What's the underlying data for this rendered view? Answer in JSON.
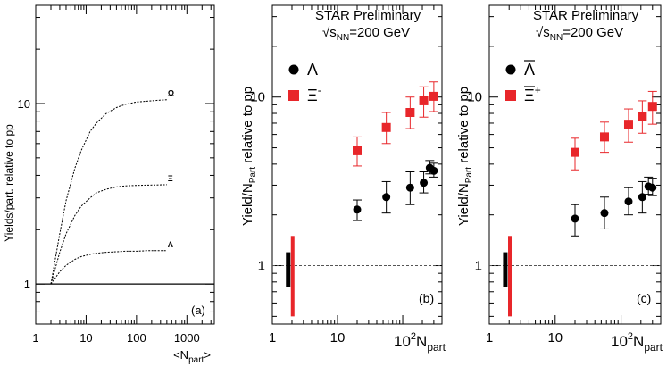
{
  "chart_data": [
    {
      "id": "a",
      "type": "line",
      "panel_label": "(a)",
      "ylabel": "Yields/part. relative to pp",
      "xlabel_main": "<N",
      "xlabel_sub": "part",
      "xlabel_end": ">",
      "xscale": "log",
      "yscale": "log",
      "xlim": [
        1,
        3500
      ],
      "ylim": [
        0.6,
        35
      ],
      "xticks": [
        1,
        10,
        100,
        1000
      ],
      "xtick_labels": [
        "1",
        "10",
        "100",
        "1000"
      ],
      "yticks": [
        1,
        10
      ],
      "ytick_labels": [
        "1",
        "10"
      ],
      "reference_line": 1,
      "series": [
        {
          "name": "Ω",
          "style": "dotted",
          "x": [
            2,
            3,
            4,
            6,
            8,
            12,
            16,
            25,
            40,
            60,
            100,
            160,
            250,
            400
          ],
          "y": [
            1.0,
            1.9,
            2.9,
            4.4,
            5.5,
            7.0,
            7.8,
            8.8,
            9.5,
            9.9,
            10.2,
            10.3,
            10.4,
            10.5
          ]
        },
        {
          "name": "Ξ",
          "style": "dotted",
          "x": [
            2,
            3,
            4,
            6,
            8,
            12,
            16,
            25,
            40,
            60,
            100,
            160,
            250,
            400
          ],
          "y": [
            1.0,
            1.5,
            1.9,
            2.4,
            2.7,
            3.0,
            3.2,
            3.35,
            3.45,
            3.5,
            3.52,
            3.53,
            3.54,
            3.55
          ]
        },
        {
          "name": "Λ",
          "style": "dotted",
          "x": [
            2,
            3,
            4,
            6,
            8,
            12,
            16,
            25,
            40,
            60,
            100,
            160,
            250,
            400
          ],
          "y": [
            1.0,
            1.17,
            1.27,
            1.37,
            1.42,
            1.46,
            1.48,
            1.5,
            1.51,
            1.52,
            1.52,
            1.53,
            1.53,
            1.53
          ]
        }
      ],
      "curve_labels": [
        "Ω",
        "Ξ",
        "Λ"
      ]
    },
    {
      "id": "b",
      "type": "scatter",
      "panel_label": "(b)",
      "title_line1": "STAR Preliminary",
      "title_line2_pre": "√s",
      "title_line2_sub": "NN",
      "title_line2_post": "=200 GeV",
      "ylabel_pre": "Yield/N",
      "ylabel_sub": "Part",
      "ylabel_post": " relative to pp",
      "xlabel_pre": "10",
      "xlabel_sup": "2",
      "xlabel_main": "N",
      "xlabel_sub": "part",
      "xscale": "log",
      "yscale": "log",
      "xlim": [
        1,
        400
      ],
      "ylim": [
        0.45,
        35
      ],
      "xticks": [
        1,
        10
      ],
      "xtick_labels": [
        "1",
        "10"
      ],
      "yticks": [
        1,
        10
      ],
      "ytick_labels": [
        "1",
        "10"
      ],
      "reference_line": 1,
      "series": [
        {
          "name": "Λ",
          "legend_label": "Λ",
          "legend_sup": "",
          "marker": "circle",
          "color": "#000000",
          "x": [
            20,
            56,
            130,
            210,
            260,
            300
          ],
          "y": [
            2.15,
            2.55,
            2.9,
            3.1,
            3.8,
            3.65
          ],
          "yerr_low": [
            0.3,
            0.5,
            0.6,
            0.4,
            0.3,
            0.3
          ],
          "yerr_high": [
            0.3,
            0.6,
            0.7,
            0.5,
            0.4,
            0.4
          ]
        },
        {
          "name": "Ξ⁻",
          "legend_label": "Ξ",
          "legend_sup": "-",
          "marker": "square",
          "color": "#e8262a",
          "x": [
            20,
            56,
            130,
            210,
            300
          ],
          "y": [
            4.8,
            6.6,
            8.1,
            9.5,
            10.1
          ],
          "yerr_low": [
            0.9,
            1.3,
            1.6,
            1.9,
            1.9
          ],
          "yerr_high": [
            1.0,
            1.5,
            1.9,
            2.0,
            2.2
          ]
        }
      ],
      "norm_bars": [
        {
          "x": 1.75,
          "ylow": 0.75,
          "yhigh": 1.2,
          "color": "#000000"
        },
        {
          "x": 2.05,
          "ylow": 0.5,
          "yhigh": 1.5,
          "color": "#e8262a"
        }
      ]
    },
    {
      "id": "c",
      "type": "scatter",
      "panel_label": "(c)",
      "title_line1": "STAR Preliminary",
      "title_line2_pre": "√s",
      "title_line2_sub": "NN",
      "title_line2_post": "=200 GeV",
      "ylabel_pre": "Yield/N",
      "ylabel_sub": "Part",
      "ylabel_post": " relative to pp",
      "xlabel_pre": "10",
      "xlabel_sup": "2",
      "xlabel_main": "N",
      "xlabel_sub": "part",
      "xscale": "log",
      "yscale": "log",
      "xlim": [
        1,
        400
      ],
      "ylim": [
        0.45,
        35
      ],
      "xticks": [
        1,
        10
      ],
      "xtick_labels": [
        "1",
        "10"
      ],
      "yticks": [
        1,
        10
      ],
      "ytick_labels": [
        "1",
        "10"
      ],
      "reference_line": 1,
      "series": [
        {
          "name": "Λ̄",
          "legend_label": "Λ",
          "legend_sup": "",
          "legend_bar": true,
          "marker": "circle",
          "color": "#000000",
          "x": [
            20,
            56,
            130,
            210,
            260,
            300
          ],
          "y": [
            1.9,
            2.05,
            2.4,
            2.55,
            2.95,
            2.9
          ],
          "yerr_low": [
            0.4,
            0.4,
            0.4,
            0.5,
            0.3,
            0.3
          ],
          "yerr_high": [
            0.4,
            0.5,
            0.5,
            0.6,
            0.4,
            0.4
          ]
        },
        {
          "name": "Ξ̄⁺",
          "legend_label": "Ξ",
          "legend_sup": "+",
          "legend_bar": true,
          "marker": "square",
          "color": "#e8262a",
          "x": [
            20,
            56,
            130,
            210,
            300
          ],
          "y": [
            4.7,
            5.8,
            6.9,
            7.7,
            8.8
          ],
          "yerr_low": [
            1.0,
            1.1,
            1.5,
            1.6,
            1.9
          ],
          "yerr_high": [
            1.0,
            1.3,
            1.6,
            1.8,
            2.0
          ]
        }
      ],
      "norm_bars": [
        {
          "x": 1.75,
          "ylow": 0.75,
          "yhigh": 1.2,
          "color": "#000000"
        },
        {
          "x": 2.05,
          "ylow": 0.5,
          "yhigh": 1.5,
          "color": "#e8262a"
        }
      ]
    }
  ]
}
